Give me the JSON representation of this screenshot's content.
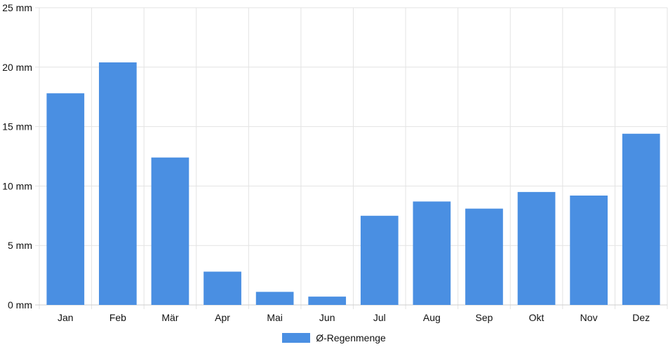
{
  "chart_data": {
    "type": "bar",
    "categories": [
      "Jan",
      "Feb",
      "Mär",
      "Apr",
      "Mai",
      "Jun",
      "Jul",
      "Aug",
      "Sep",
      "Okt",
      "Nov",
      "Dez"
    ],
    "series": [
      {
        "name": "Ø-Regenmenge",
        "values": [
          17.8,
          20.4,
          12.4,
          2.8,
          1.1,
          0.7,
          7.5,
          8.7,
          8.1,
          9.5,
          9.2,
          14.4
        ]
      }
    ],
    "y_ticks": [
      "0 mm",
      "5 mm",
      "10 mm",
      "15 mm",
      "20 mm",
      "25 mm"
    ],
    "ylim": [
      0,
      25
    ],
    "grid": true,
    "legend": "bottom-center",
    "colors": {
      "bar": "#4a8fe2",
      "grid": "#e3e3e3",
      "axis": "#cfcfcf"
    }
  }
}
